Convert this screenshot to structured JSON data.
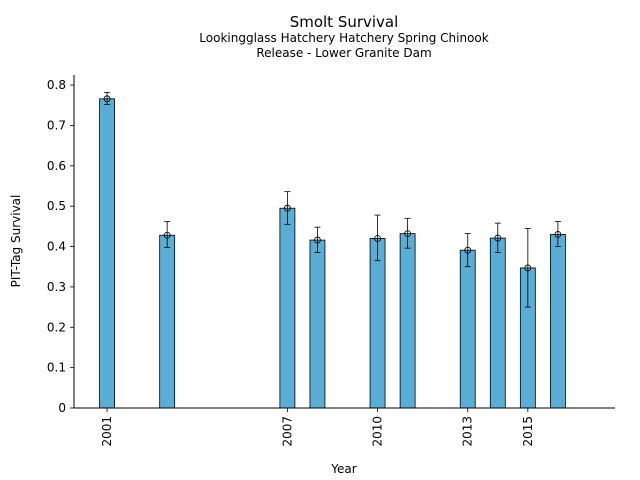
{
  "chart_data": {
    "type": "bar",
    "title": "Smolt Survival",
    "subtitle": [
      "Lookingglass Hatchery Hatchery Spring Chinook",
      "Release - Lower Granite Dam"
    ],
    "xlabel": "Year",
    "ylabel": "PIT-Tag Survival",
    "xlim": [
      1999.9,
      2017.9
    ],
    "ylim": [
      0,
      0.825
    ],
    "x_ticks": [
      2001,
      2007,
      2010,
      2013,
      2015
    ],
    "y_ticks": [
      0,
      0.1,
      0.2,
      0.3,
      0.4,
      0.5,
      0.6,
      0.7,
      0.8
    ],
    "grid": false,
    "bar_color": "#5aaed6",
    "series": [
      {
        "x": [
          2001,
          2003,
          2007,
          2008,
          2010,
          2011,
          2013,
          2014,
          2015,
          2016
        ],
        "values": [
          0.766,
          0.428,
          0.495,
          0.416,
          0.42,
          0.432,
          0.391,
          0.421,
          0.347,
          0.43
        ],
        "error_low": [
          0.752,
          0.398,
          0.455,
          0.385,
          0.365,
          0.396,
          0.35,
          0.385,
          0.25,
          0.4
        ],
        "error_high": [
          0.782,
          0.462,
          0.536,
          0.448,
          0.478,
          0.47,
          0.432,
          0.458,
          0.445,
          0.462
        ]
      }
    ]
  }
}
